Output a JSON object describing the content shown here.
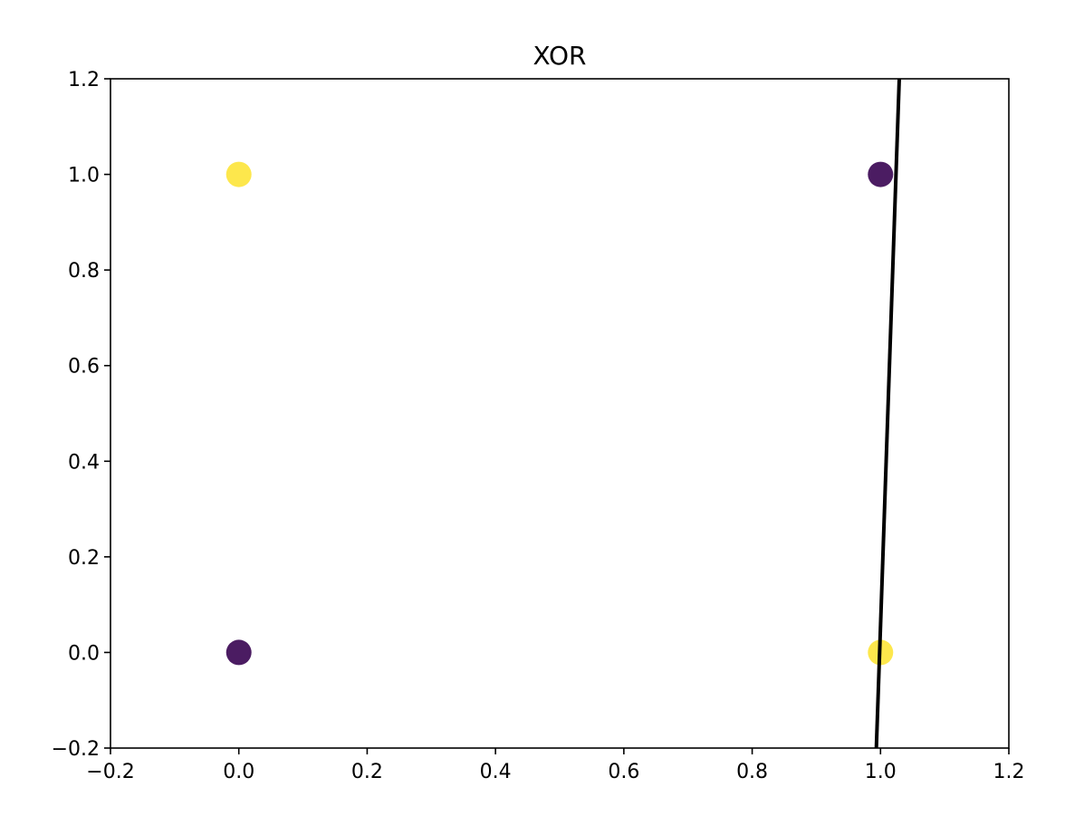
{
  "chart_data": {
    "type": "scatter",
    "title": "XOR",
    "xlabel": "",
    "ylabel": "",
    "xlim": [
      -0.2,
      1.2
    ],
    "ylim": [
      -0.2,
      1.2
    ],
    "xticks": [
      -0.2,
      0.0,
      0.2,
      0.4,
      0.6,
      0.8,
      1.0,
      1.2
    ],
    "yticks": [
      -0.2,
      0.0,
      0.2,
      0.4,
      0.6,
      0.8,
      1.0,
      1.2
    ],
    "xtick_labels": [
      "−0.2",
      "0.0",
      "0.2",
      "0.4",
      "0.6",
      "0.8",
      "1.0",
      "1.2"
    ],
    "ytick_labels": [
      "−0.2",
      "0.0",
      "0.2",
      "0.4",
      "0.6",
      "0.8",
      "1.0",
      "1.2"
    ],
    "grid": false,
    "points": [
      {
        "x": 0,
        "y": 0,
        "class": 0
      },
      {
        "x": 0,
        "y": 1,
        "class": 1
      },
      {
        "x": 1,
        "y": 0,
        "class": 1
      },
      {
        "x": 1,
        "y": 1,
        "class": 0
      }
    ],
    "class_colors": {
      "0": "#4b1c62",
      "1": "#fde74c"
    },
    "decision_boundary": {
      "x": [
        0.9935,
        1.0305
      ],
      "y": [
        -0.2,
        1.25
      ],
      "color": "#000000"
    }
  }
}
